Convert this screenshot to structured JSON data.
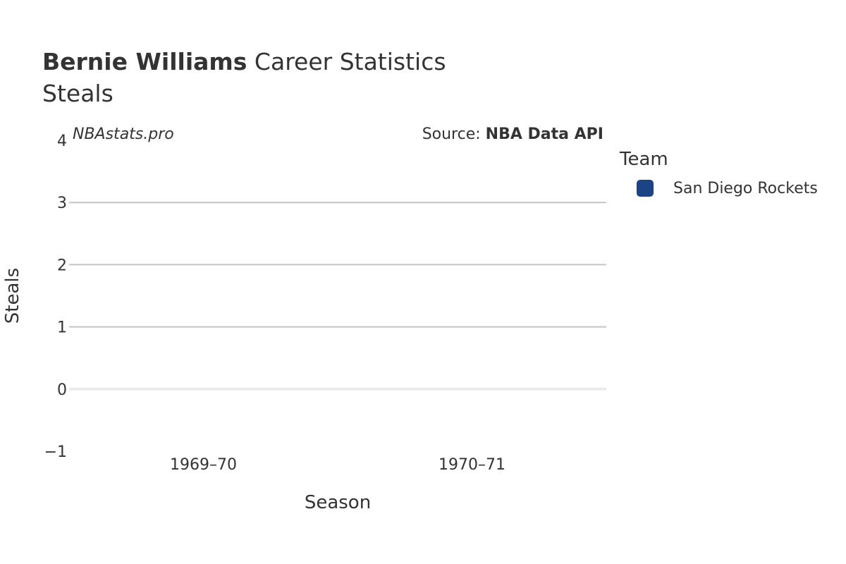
{
  "header": {
    "player_name": "Bernie Williams",
    "title_rest": " Career Statistics",
    "subtitle": "Steals"
  },
  "watermark": "NBAstats.pro",
  "source": {
    "prefix": "Source: ",
    "name": "NBA Data API"
  },
  "legend": {
    "title": "Team",
    "items": [
      {
        "label": "San Diego Rockets",
        "color": "#1b4486"
      }
    ]
  },
  "chart_data": {
    "type": "bar",
    "title": "Bernie Williams Career Statistics",
    "subtitle": "Steals",
    "xlabel": "Season",
    "ylabel": "Steals",
    "categories": [
      "1969–70",
      "1970–71"
    ],
    "series": [
      {
        "name": "San Diego Rockets",
        "color": "#1b4486",
        "values": [
          0,
          0
        ]
      }
    ],
    "ylim": [
      -1,
      4
    ],
    "yticks": [
      -1,
      0,
      1,
      2,
      3,
      4
    ],
    "ytick_labels": [
      "−1",
      "0",
      "1",
      "2",
      "3",
      "4"
    ],
    "grid": true,
    "legend_position": "right"
  }
}
